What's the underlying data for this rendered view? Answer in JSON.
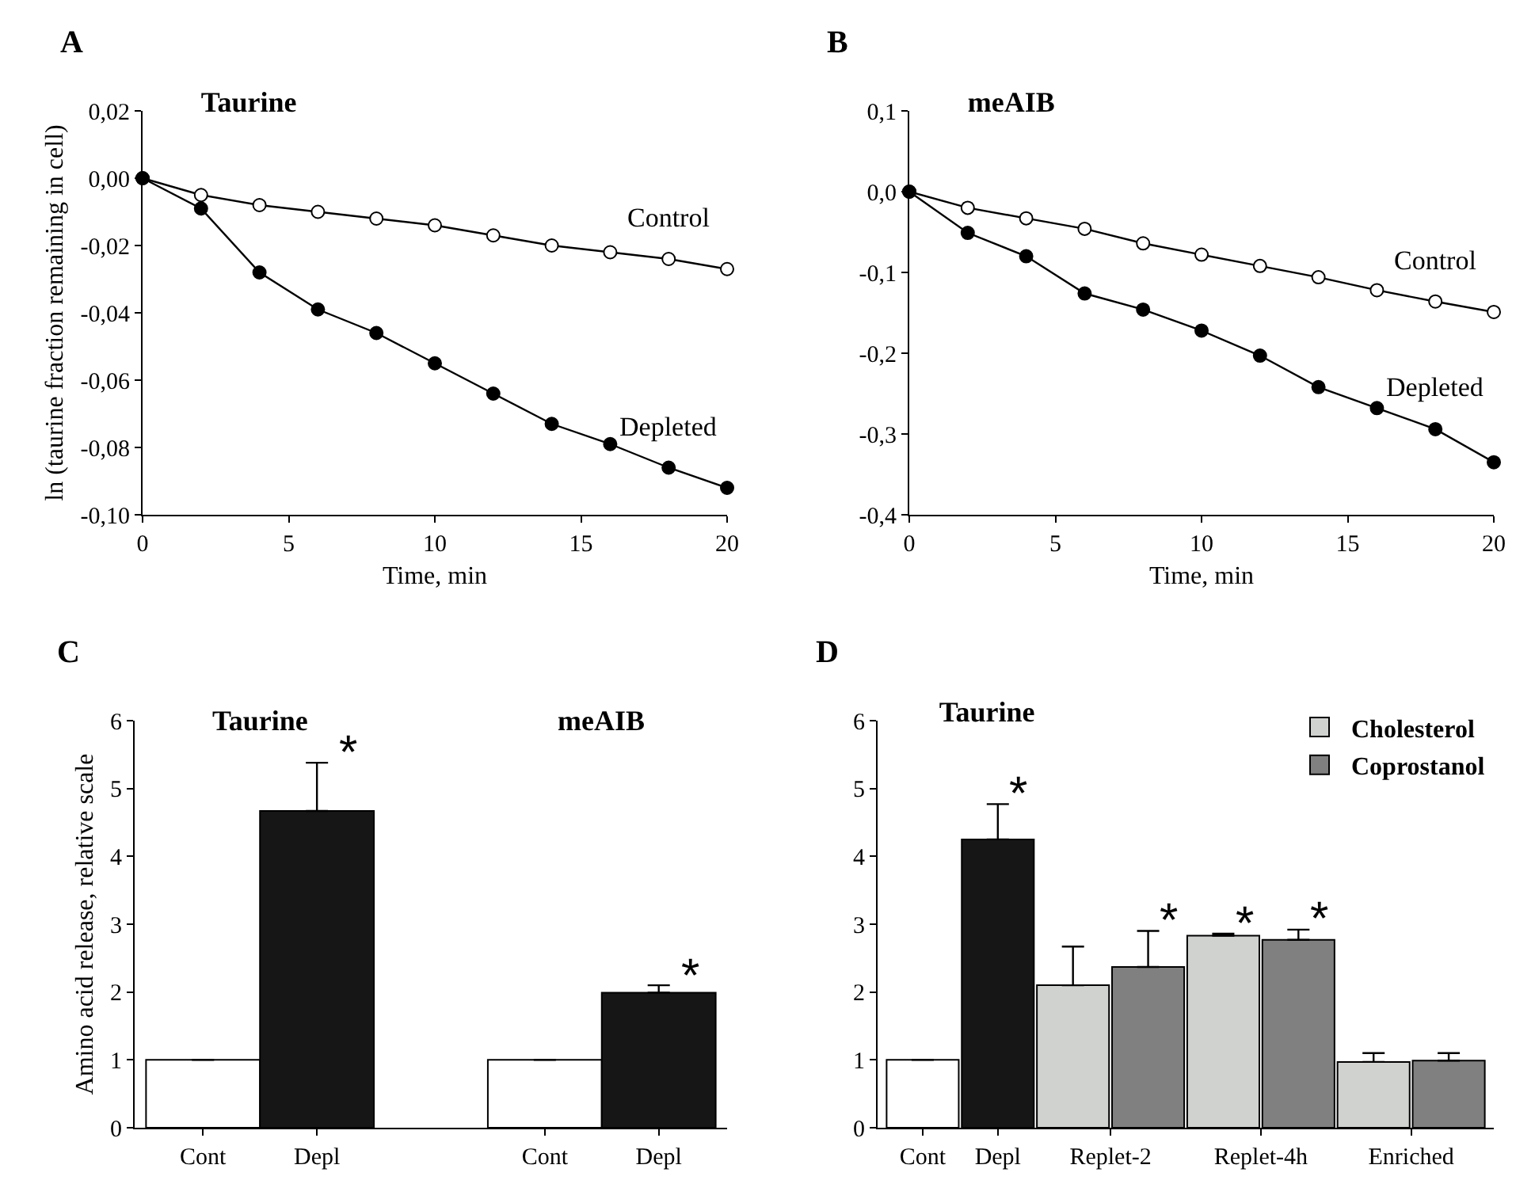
{
  "chart_data": [
    {
      "type": "line",
      "title": "Taurine",
      "annotations": [
        "A"
      ],
      "xlabel": "Time, min",
      "ylabel": "ln (taurine fraction remaining in cell)",
      "x": [
        0,
        2,
        4,
        6,
        8,
        10,
        12,
        14,
        16,
        18,
        20
      ],
      "series": [
        {
          "name": "Control",
          "color": "#ffffff",
          "values": [
            0,
            -0.005,
            -0.008,
            -0.01,
            -0.012,
            -0.014,
            -0.017,
            -0.02,
            -0.022,
            -0.024,
            -0.027
          ]
        },
        {
          "name": "Depleted",
          "color": "#000000",
          "values": [
            0,
            -0.009,
            -0.028,
            -0.039,
            -0.046,
            -0.055,
            -0.064,
            -0.073,
            -0.079,
            -0.086,
            -0.092
          ]
        }
      ],
      "xlim": [
        0,
        20
      ],
      "xticks": [
        0,
        5,
        10,
        15,
        20
      ],
      "ylim": [
        -0.1,
        0.02
      ],
      "yticks": [
        {
          "value": 0.02,
          "label": "0,02"
        },
        {
          "value": 0,
          "label": "0,00"
        },
        {
          "value": -0.02,
          "label": "-0,02"
        },
        {
          "value": -0.04,
          "label": "-0,04"
        },
        {
          "value": -0.06,
          "label": "-0,06"
        },
        {
          "value": -0.08,
          "label": "-0,08"
        },
        {
          "value": -0.1,
          "label": "-0,10"
        }
      ],
      "marker": "circle",
      "line_style": "solid",
      "grid": false,
      "legend": false
    },
    {
      "type": "line",
      "title": "meAIB",
      "annotations": [
        "B"
      ],
      "xlabel": "Time, min",
      "x": [
        0,
        2,
        4,
        6,
        8,
        10,
        12,
        14,
        16,
        18,
        20
      ],
      "series": [
        {
          "name": "Control",
          "color": "#ffffff",
          "values": [
            0,
            -0.02,
            -0.033,
            -0.046,
            -0.064,
            -0.078,
            -0.092,
            -0.106,
            -0.122,
            -0.136,
            -0.149
          ]
        },
        {
          "name": "Depleted",
          "color": "#000000",
          "values": [
            0,
            -0.051,
            -0.08,
            -0.126,
            -0.146,
            -0.172,
            -0.203,
            -0.242,
            -0.268,
            -0.294,
            -0.335
          ]
        }
      ],
      "xlim": [
        0,
        20
      ],
      "xticks": [
        0,
        5,
        10,
        15,
        20
      ],
      "ylim": [
        -0.4,
        0.1
      ],
      "yticks": [
        {
          "value": 0.1,
          "label": "0,1"
        },
        {
          "value": 0,
          "label": "0,0"
        },
        {
          "value": -0.1,
          "label": "-0,1"
        },
        {
          "value": -0.2,
          "label": "-0,2"
        },
        {
          "value": -0.3,
          "label": "-0,3"
        },
        {
          "value": -0.4,
          "label": "-0,4"
        }
      ],
      "marker": "circle",
      "line_style": "solid",
      "grid": false,
      "legend": false
    },
    {
      "type": "bar",
      "ylabel": "Amino acid release, relative scale",
      "annotations": [
        "C",
        "Taurine",
        "meAIB"
      ],
      "categories": [
        "Cont",
        "Depl",
        null,
        "Cont",
        "Depl"
      ],
      "values": [
        1,
        4.67,
        null,
        1,
        1.99
      ],
      "colors": [
        "#ffffff",
        "#161616",
        null,
        "#ffffff",
        "#161616"
      ],
      "errors": [
        null,
        [
          4.67,
          5.38
        ],
        null,
        null,
        [
          1.99,
          2.1
        ]
      ],
      "value_labels": [
        null,
        "*",
        null,
        null,
        "*"
      ],
      "ylim": [
        0,
        6
      ],
      "yticks": [
        0,
        1,
        2,
        3,
        4,
        5,
        6
      ],
      "grid": false,
      "legend": false
    },
    {
      "type": "bar",
      "title": "Taurine",
      "annotations": [
        "D"
      ],
      "categories": [
        "Cont",
        "Depl",
        "Replet-2",
        "Replet-4h",
        "Enriched"
      ],
      "series": [
        {
          "colors": [
            "#ffffff",
            "#161616",
            null,
            null,
            null
          ],
          "values": [
            1,
            4.25,
            null,
            null,
            null
          ],
          "errors": [
            null,
            [
              4.25,
              4.77
            ],
            null,
            null,
            null
          ],
          "value_labels": [
            null,
            "*",
            null,
            null,
            null
          ]
        },
        {
          "name": "Cholesterol",
          "color": "#d0d2d0",
          "values": [
            null,
            null,
            2.1,
            2.83,
            0.97
          ],
          "errors": [
            null,
            null,
            [
              2.1,
              2.67
            ],
            [
              2.83,
              2.86
            ],
            [
              0.97,
              1.1
            ]
          ],
          "value_labels": [
            null,
            null,
            null,
            "*",
            null
          ]
        },
        {
          "name": "Coprostanol",
          "color": "#808080",
          "values": [
            null,
            null,
            2.37,
            2.77,
            0.99
          ],
          "errors": [
            null,
            null,
            [
              2.37,
              2.9
            ],
            [
              2.77,
              2.92
            ],
            [
              0.99,
              1.1
            ]
          ],
          "value_labels": [
            null,
            null,
            "*",
            "*",
            null
          ]
        }
      ],
      "ylim": [
        0,
        6
      ],
      "yticks": [
        0,
        1,
        2,
        3,
        4,
        5,
        6
      ],
      "grid": false,
      "legend": "top right"
    }
  ]
}
